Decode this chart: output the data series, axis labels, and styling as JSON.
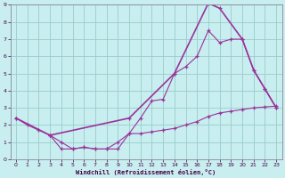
{
  "xlabel": "Windchill (Refroidissement éolien,°C)",
  "background_color": "#c8eef0",
  "line_color": "#993399",
  "grid_color": "#99cccc",
  "xlim": [
    -0.5,
    23.5
  ],
  "ylim": [
    0,
    9
  ],
  "xticks": [
    0,
    1,
    2,
    3,
    4,
    5,
    6,
    7,
    8,
    9,
    10,
    11,
    12,
    13,
    14,
    15,
    16,
    17,
    18,
    19,
    20,
    21,
    22,
    23
  ],
  "yticks": [
    0,
    1,
    2,
    3,
    4,
    5,
    6,
    7,
    8,
    9
  ],
  "line1_x": [
    0,
    1,
    2,
    3,
    4,
    5,
    6,
    7,
    8,
    9,
    10,
    11,
    12,
    13,
    14,
    15,
    16,
    17,
    18,
    19,
    20,
    21,
    22,
    23
  ],
  "line1_y": [
    2.4,
    2.0,
    1.7,
    1.4,
    1.0,
    0.6,
    0.7,
    0.6,
    0.6,
    1.0,
    1.5,
    2.4,
    3.4,
    3.5,
    5.0,
    5.4,
    6.0,
    7.5,
    6.8,
    7.0,
    7.0,
    5.2,
    4.1,
    3.0
  ],
  "line2_x": [
    0,
    3,
    10,
    14,
    17,
    18,
    20,
    21,
    22,
    23
  ],
  "line2_y": [
    2.4,
    1.4,
    2.4,
    5.0,
    9.1,
    8.8,
    7.0,
    5.2,
    4.1,
    3.0
  ],
  "line3_x": [
    3,
    4,
    5,
    6,
    7,
    8,
    9,
    10,
    11,
    12,
    13,
    14,
    15,
    16,
    17,
    18,
    19,
    20,
    21,
    22,
    23
  ],
  "line3_y": [
    1.4,
    0.6,
    0.6,
    0.7,
    0.6,
    0.6,
    0.6,
    1.5,
    1.5,
    1.6,
    1.7,
    1.8,
    2.0,
    2.2,
    2.5,
    2.7,
    2.8,
    2.9,
    3.0,
    3.05,
    3.1
  ]
}
